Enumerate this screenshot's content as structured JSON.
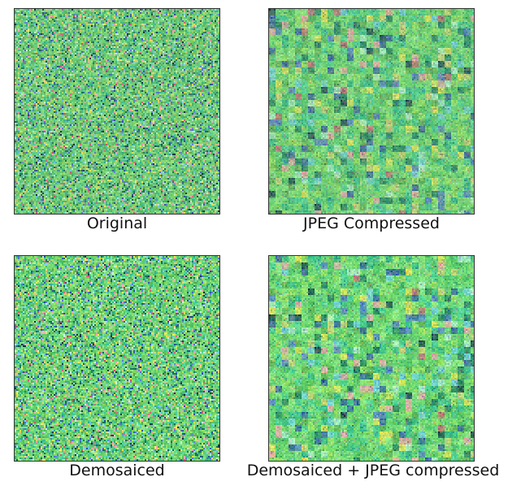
{
  "panels": [
    {
      "caption": "Original"
    },
    {
      "caption": "JPEG Compressed"
    },
    {
      "caption": "Demosaiced"
    },
    {
      "caption": "Demosaiced + JPEG compressed"
    }
  ],
  "colors": {
    "dominant_green": "#6fce78",
    "border": "#333333"
  }
}
